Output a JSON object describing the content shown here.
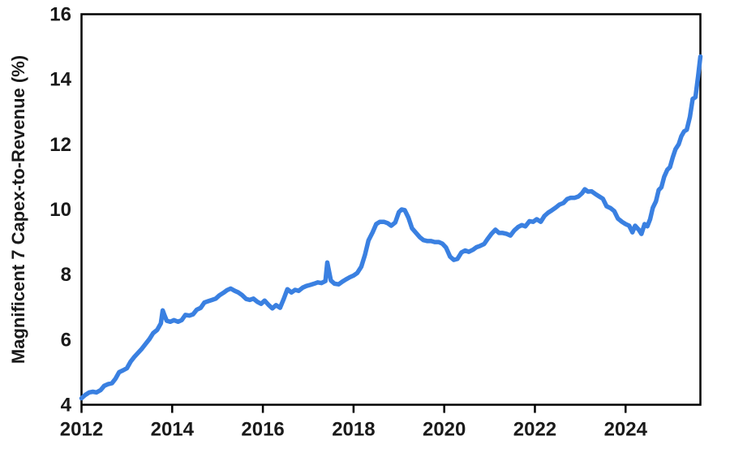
{
  "page": {
    "background_color": "#ffffff",
    "axis_color": "#000000",
    "text_color": "#1a1a1a"
  },
  "chart_data": {
    "type": "line",
    "title": "",
    "xlabel": "",
    "ylabel": "Magnificent 7 Capex-to-Revenue (%)",
    "xlim": [
      2012,
      2025.65
    ],
    "ylim": [
      4,
      16
    ],
    "xticks": [
      2012,
      2014,
      2016,
      2018,
      2020,
      2022,
      2024
    ],
    "yticks": [
      4,
      6,
      8,
      10,
      12,
      14,
      16
    ],
    "grid": false,
    "legend_position": "none",
    "series": [
      {
        "name": "Magnificent 7 Capex-to-Revenue (%)",
        "color": "#3a80e1",
        "line_width": 5.5,
        "x": [
          2012.0,
          2012.08,
          2012.17,
          2012.25,
          2012.33,
          2012.42,
          2012.5,
          2012.58,
          2012.67,
          2012.75,
          2012.83,
          2012.92,
          2013.0,
          2013.08,
          2013.17,
          2013.25,
          2013.33,
          2013.42,
          2013.5,
          2013.58,
          2013.67,
          2013.75,
          2013.79,
          2013.83,
          2013.88,
          2013.96,
          2014.04,
          2014.13,
          2014.21,
          2014.29,
          2014.38,
          2014.46,
          2014.54,
          2014.63,
          2014.71,
          2014.79,
          2014.88,
          2014.96,
          2015.04,
          2015.13,
          2015.21,
          2015.29,
          2015.38,
          2015.46,
          2015.54,
          2015.63,
          2015.71,
          2015.79,
          2015.88,
          2015.96,
          2016.04,
          2016.13,
          2016.21,
          2016.29,
          2016.38,
          2016.46,
          2016.54,
          2016.63,
          2016.71,
          2016.79,
          2016.88,
          2016.96,
          2017.04,
          2017.13,
          2017.21,
          2017.29,
          2017.38,
          2017.42,
          2017.5,
          2017.58,
          2017.67,
          2017.75,
          2017.83,
          2017.92,
          2018.0,
          2018.08,
          2018.17,
          2018.25,
          2018.33,
          2018.42,
          2018.5,
          2018.58,
          2018.67,
          2018.75,
          2018.83,
          2018.92,
          2019.0,
          2019.06,
          2019.13,
          2019.21,
          2019.29,
          2019.38,
          2019.46,
          2019.54,
          2019.63,
          2019.71,
          2019.79,
          2019.88,
          2019.96,
          2020.04,
          2020.13,
          2020.21,
          2020.29,
          2020.38,
          2020.46,
          2020.54,
          2020.63,
          2020.71,
          2020.79,
          2020.88,
          2020.96,
          2021.04,
          2021.13,
          2021.21,
          2021.29,
          2021.38,
          2021.46,
          2021.54,
          2021.63,
          2021.71,
          2021.79,
          2021.88,
          2021.96,
          2022.04,
          2022.13,
          2022.21,
          2022.29,
          2022.38,
          2022.46,
          2022.54,
          2022.63,
          2022.71,
          2022.79,
          2022.88,
          2022.96,
          2023.04,
          2023.1,
          2023.17,
          2023.25,
          2023.33,
          2023.42,
          2023.5,
          2023.58,
          2023.67,
          2023.75,
          2023.83,
          2023.92,
          2024.0,
          2024.08,
          2024.15,
          2024.21,
          2024.29,
          2024.35,
          2024.42,
          2024.48,
          2024.54,
          2024.6,
          2024.67,
          2024.73,
          2024.79,
          2024.85,
          2024.92,
          2024.98,
          2025.04,
          2025.1,
          2025.17,
          2025.23,
          2025.29,
          2025.35,
          2025.42,
          2025.48,
          2025.54,
          2025.6,
          2025.65
        ],
        "values": [
          4.2,
          4.3,
          4.38,
          4.4,
          4.38,
          4.45,
          4.58,
          4.63,
          4.66,
          4.8,
          5.0,
          5.06,
          5.12,
          5.32,
          5.48,
          5.6,
          5.72,
          5.88,
          6.02,
          6.2,
          6.3,
          6.5,
          6.9,
          6.75,
          6.58,
          6.55,
          6.6,
          6.55,
          6.6,
          6.76,
          6.74,
          6.78,
          6.92,
          6.98,
          7.14,
          7.18,
          7.22,
          7.26,
          7.36,
          7.44,
          7.52,
          7.57,
          7.5,
          7.45,
          7.37,
          7.25,
          7.22,
          7.26,
          7.16,
          7.1,
          7.2,
          7.06,
          6.96,
          7.06,
          6.98,
          7.25,
          7.55,
          7.45,
          7.53,
          7.5,
          7.6,
          7.65,
          7.68,
          7.72,
          7.76,
          7.74,
          7.8,
          8.37,
          7.82,
          7.72,
          7.7,
          7.78,
          7.85,
          7.92,
          7.97,
          8.05,
          8.24,
          8.6,
          9.05,
          9.3,
          9.55,
          9.62,
          9.62,
          9.58,
          9.5,
          9.6,
          9.92,
          10.0,
          9.98,
          9.75,
          9.42,
          9.28,
          9.15,
          9.06,
          9.03,
          9.03,
          9.0,
          9.0,
          8.95,
          8.83,
          8.55,
          8.45,
          8.48,
          8.68,
          8.74,
          8.7,
          8.76,
          8.84,
          8.88,
          8.94,
          9.1,
          9.25,
          9.38,
          9.28,
          9.28,
          9.25,
          9.2,
          9.35,
          9.46,
          9.52,
          9.48,
          9.64,
          9.62,
          9.7,
          9.62,
          9.8,
          9.9,
          9.98,
          10.06,
          10.15,
          10.2,
          10.32,
          10.36,
          10.36,
          10.4,
          10.5,
          10.62,
          10.55,
          10.56,
          10.48,
          10.4,
          10.33,
          10.1,
          10.04,
          9.95,
          9.72,
          9.62,
          9.55,
          9.5,
          9.3,
          9.5,
          9.38,
          9.25,
          9.55,
          9.48,
          9.7,
          10.05,
          10.25,
          10.6,
          10.68,
          11.0,
          11.22,
          11.3,
          11.6,
          11.85,
          12.0,
          12.25,
          12.4,
          12.45,
          12.85,
          13.4,
          13.45,
          14.1,
          14.7
        ]
      }
    ]
  }
}
